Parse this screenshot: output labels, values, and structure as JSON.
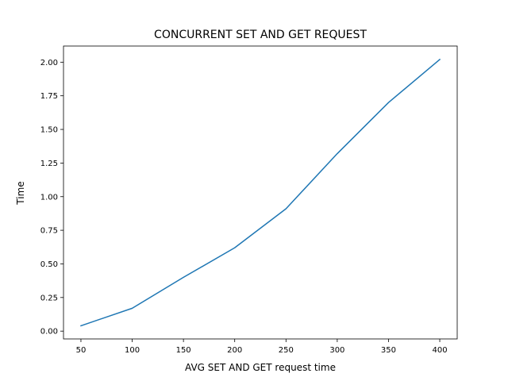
{
  "chart_data": {
    "type": "line",
    "title": "CONCURRENT SET AND GET REQUEST",
    "xlabel": "AVG SET AND GET request time",
    "ylabel": "Time",
    "xlim": [
      33,
      417
    ],
    "ylim": [
      -0.058,
      2.12
    ],
    "xticks": [
      50,
      100,
      150,
      200,
      250,
      300,
      350,
      400
    ],
    "xtick_labels": [
      "50",
      "100",
      "150",
      "200",
      "250",
      "300",
      "350",
      "400"
    ],
    "yticks": [
      0.0,
      0.25,
      0.5,
      0.75,
      1.0,
      1.25,
      1.5,
      1.75,
      2.0
    ],
    "ytick_labels": [
      "0.00",
      "0.25",
      "0.50",
      "0.75",
      "1.00",
      "1.25",
      "1.50",
      "1.75",
      "2.00"
    ],
    "grid": false,
    "series": [
      {
        "color": "#1f77b4",
        "x": [
          50,
          100,
          150,
          200,
          250,
          300,
          350,
          400
        ],
        "y": [
          0.04,
          0.17,
          0.4,
          0.62,
          0.91,
          1.32,
          1.7,
          2.02
        ]
      }
    ]
  }
}
